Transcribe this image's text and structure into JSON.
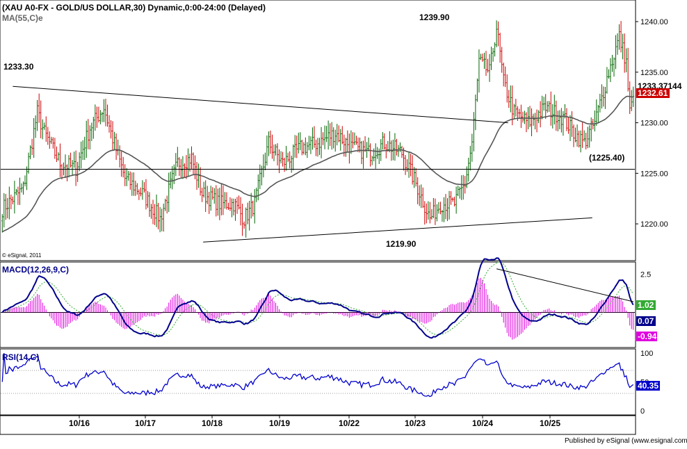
{
  "chart_data": [
    {
      "type": "candlestick",
      "title": "(XAU A0-FX - GOLD/US DOLLAR,30) Dynamic,0:00-24:00 (Delayed)",
      "overlay_label": "MA(55,C)e",
      "copyright": "© eSignal, 2011",
      "yticks": [
        "1240.00",
        "1235.00",
        "1230.00",
        "1225.00",
        "1220.00"
      ],
      "ylim": [
        1216.5,
        1242
      ],
      "current_values": {
        "ma": "1233.37",
        "last": "1232.61",
        "extra": "144"
      },
      "annotations": {
        "high_left": "1233.30",
        "high_top": "1239.90",
        "support": "(1225.40)",
        "low": "1219.90"
      },
      "support_level": 1225.4,
      "trendlines": [
        {
          "from": [
            0.5,
            1233.6
          ],
          "to": [
            24.05,
            1230.0
          ]
        },
        {
          "from": [
            9.55,
            1218.2
          ],
          "to": [
            28.05,
            1220.6
          ]
        }
      ],
      "price_path": {
        "points_per_day": 17.9,
        "series_start_index": 0,
        "anchors": [
          [
            0,
            1221.5
          ],
          [
            12,
            1223.5
          ],
          [
            20,
            1231.0
          ],
          [
            24,
            1229.0
          ],
          [
            33,
            1226.0
          ],
          [
            42,
            1225.5
          ],
          [
            50,
            1229.5
          ],
          [
            58,
            1231.5
          ],
          [
            62,
            1229.0
          ],
          [
            70,
            1224.5
          ],
          [
            80,
            1223.0
          ],
          [
            90,
            1220.5
          ],
          [
            100,
            1226.0
          ],
          [
            108,
            1226.5
          ],
          [
            114,
            1223.0
          ],
          [
            124,
            1222.0
          ],
          [
            132,
            1222.0
          ],
          [
            138,
            1220.5
          ],
          [
            144,
            1222.0
          ],
          [
            152,
            1228.0
          ],
          [
            160,
            1226.0
          ],
          [
            170,
            1227.5
          ],
          [
            180,
            1228.0
          ],
          [
            190,
            1229.0
          ],
          [
            200,
            1227.5
          ],
          [
            210,
            1227.0
          ],
          [
            218,
            1228.0
          ],
          [
            228,
            1227.0
          ],
          [
            236,
            1224.0
          ],
          [
            244,
            1220.5
          ],
          [
            250,
            1222.0
          ],
          [
            258,
            1222.0
          ],
          [
            264,
            1224.0
          ],
          [
            268,
            1228.0
          ],
          [
            272,
            1236.0
          ],
          [
            278,
            1235.0
          ],
          [
            282,
            1239.5
          ],
          [
            286,
            1234.0
          ],
          [
            292,
            1231.0
          ],
          [
            300,
            1230.0
          ],
          [
            310,
            1231.5
          ],
          [
            320,
            1230.5
          ],
          [
            326,
            1229.0
          ],
          [
            332,
            1228.0
          ],
          [
            338,
            1230.0
          ],
          [
            346,
            1235.0
          ],
          [
            352,
            1238.5
          ],
          [
            356,
            1236.0
          ],
          [
            358,
            1231.0
          ],
          [
            360,
            1232.6
          ]
        ]
      },
      "x_day_labels": [
        "10/16",
        "10/17",
        "10/18",
        "10/19",
        "10/22",
        "10/23",
        "10/24",
        "10/25"
      ]
    },
    {
      "type": "macd",
      "title": "MACD(12,26,9,C)",
      "yticks": [
        "2.5"
      ],
      "ylim": [
        -2.2,
        3.2
      ],
      "current_values": {
        "macd": "1.02",
        "signal": "0.07",
        "hist": "-0.94"
      },
      "trendline": {
        "from": [
          282,
          2.85
        ],
        "to": [
          380,
          0.7
        ]
      }
    },
    {
      "type": "rsi",
      "title": "RSI(14,C)",
      "yticks": [
        "100",
        "50",
        "0"
      ],
      "ylim": [
        -5,
        105
      ],
      "levels": [
        70,
        30
      ],
      "current_value": "40.35"
    }
  ],
  "footer": "Published by eSignal (www.esignal.com)"
}
